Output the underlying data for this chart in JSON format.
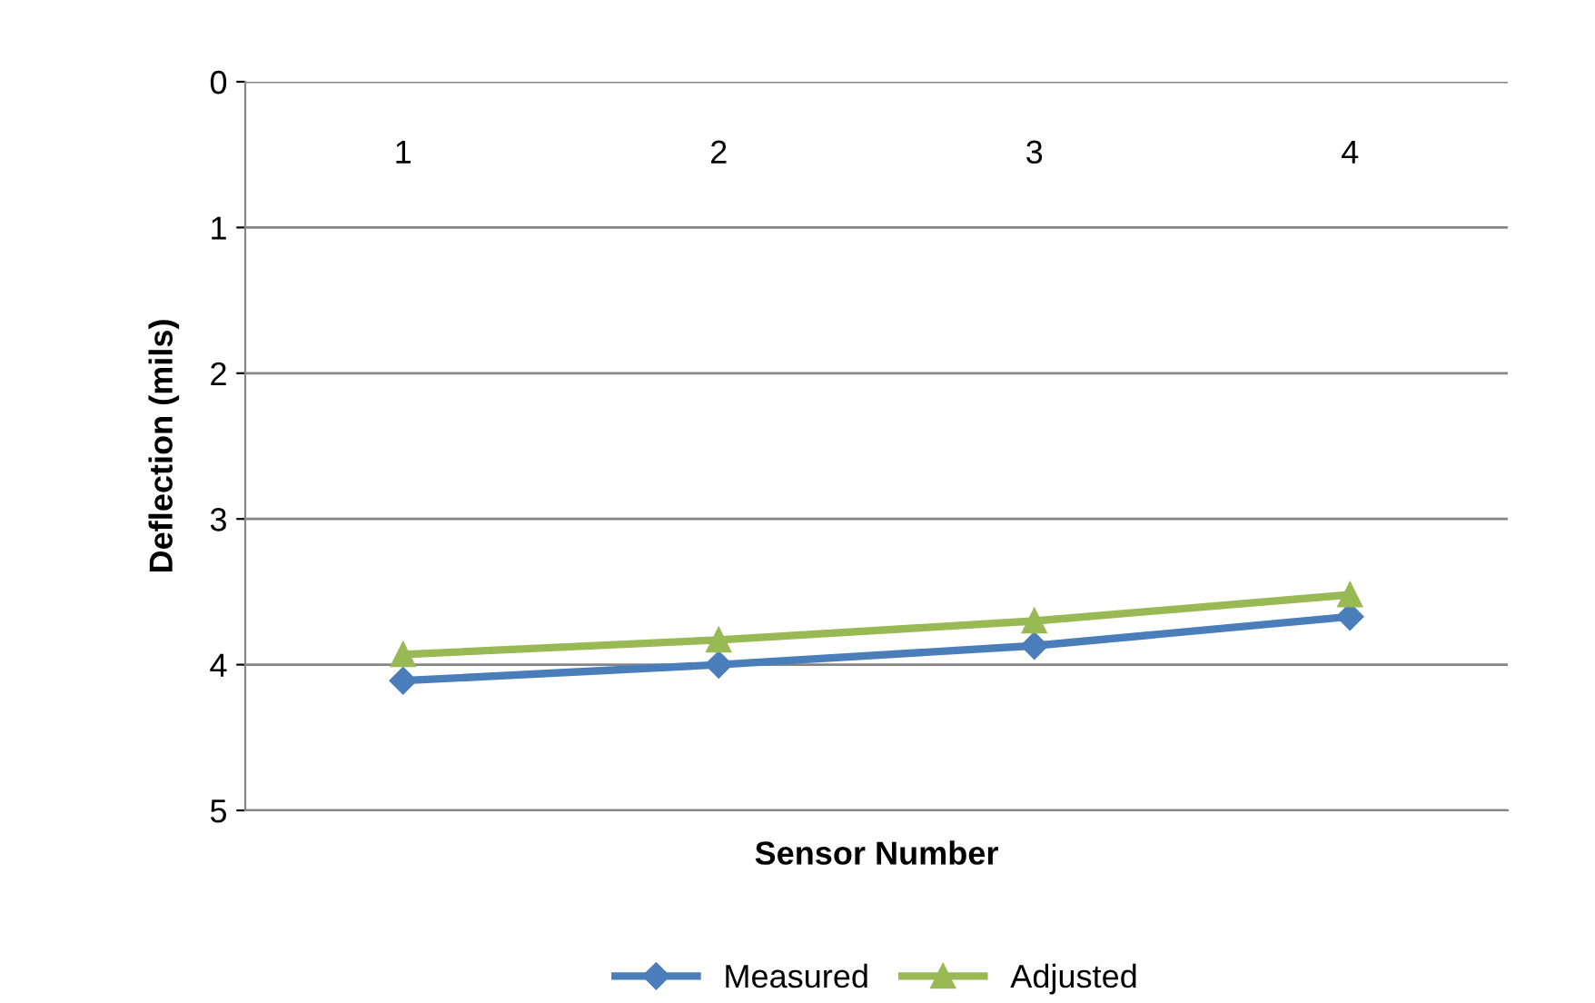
{
  "chart_data": {
    "type": "line",
    "xlabel": "Sensor Number",
    "ylabel": "Deflection (mils)",
    "categories": [
      "1",
      "2",
      "3",
      "4"
    ],
    "series": [
      {
        "name": "Measured",
        "color": "#4a7ebb",
        "marker": "diamond",
        "values": [
          4.11,
          4.0,
          3.87,
          3.67
        ]
      },
      {
        "name": "Adjusted",
        "color": "#98b954",
        "marker": "triangle",
        "values": [
          3.93,
          3.83,
          3.7,
          3.52
        ]
      }
    ],
    "ylim": [
      5,
      0
    ],
    "yticks": [
      0,
      1,
      2,
      3,
      4,
      5
    ],
    "grid": "y",
    "legend": "bottom"
  }
}
